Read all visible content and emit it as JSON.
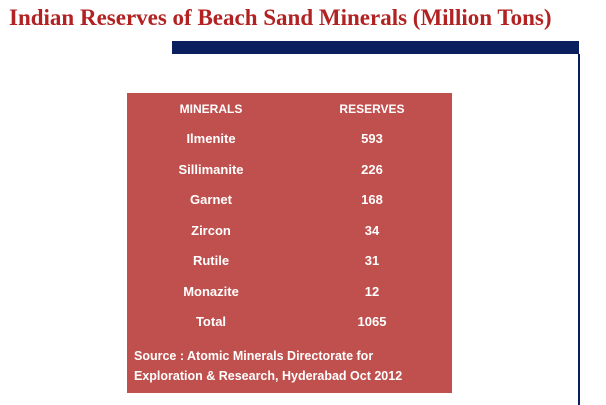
{
  "title": "Indian Reserves of Beach Sand Minerals (Million Tons)",
  "colors": {
    "title": "#b22222",
    "bar": "#0b1f5e",
    "panel": "#c0504d",
    "panel_text": "#ffffff"
  },
  "table": {
    "headers": [
      "MINERALS",
      "RESERVES"
    ],
    "rows": [
      {
        "mineral": "Ilmenite",
        "reserves": "593"
      },
      {
        "mineral": "Sillimanite",
        "reserves": "226"
      },
      {
        "mineral": "Garnet",
        "reserves": "168"
      },
      {
        "mineral": "Zircon",
        "reserves": "34"
      },
      {
        "mineral": "Rutile",
        "reserves": "31"
      },
      {
        "mineral": "Monazite",
        "reserves": "12"
      },
      {
        "mineral": "Total",
        "reserves": "1065"
      }
    ]
  },
  "source_lines": [
    "Source : Atomic Minerals Directorate for",
    "Exploration & Research, Hyderabad Oct 2012"
  ]
}
